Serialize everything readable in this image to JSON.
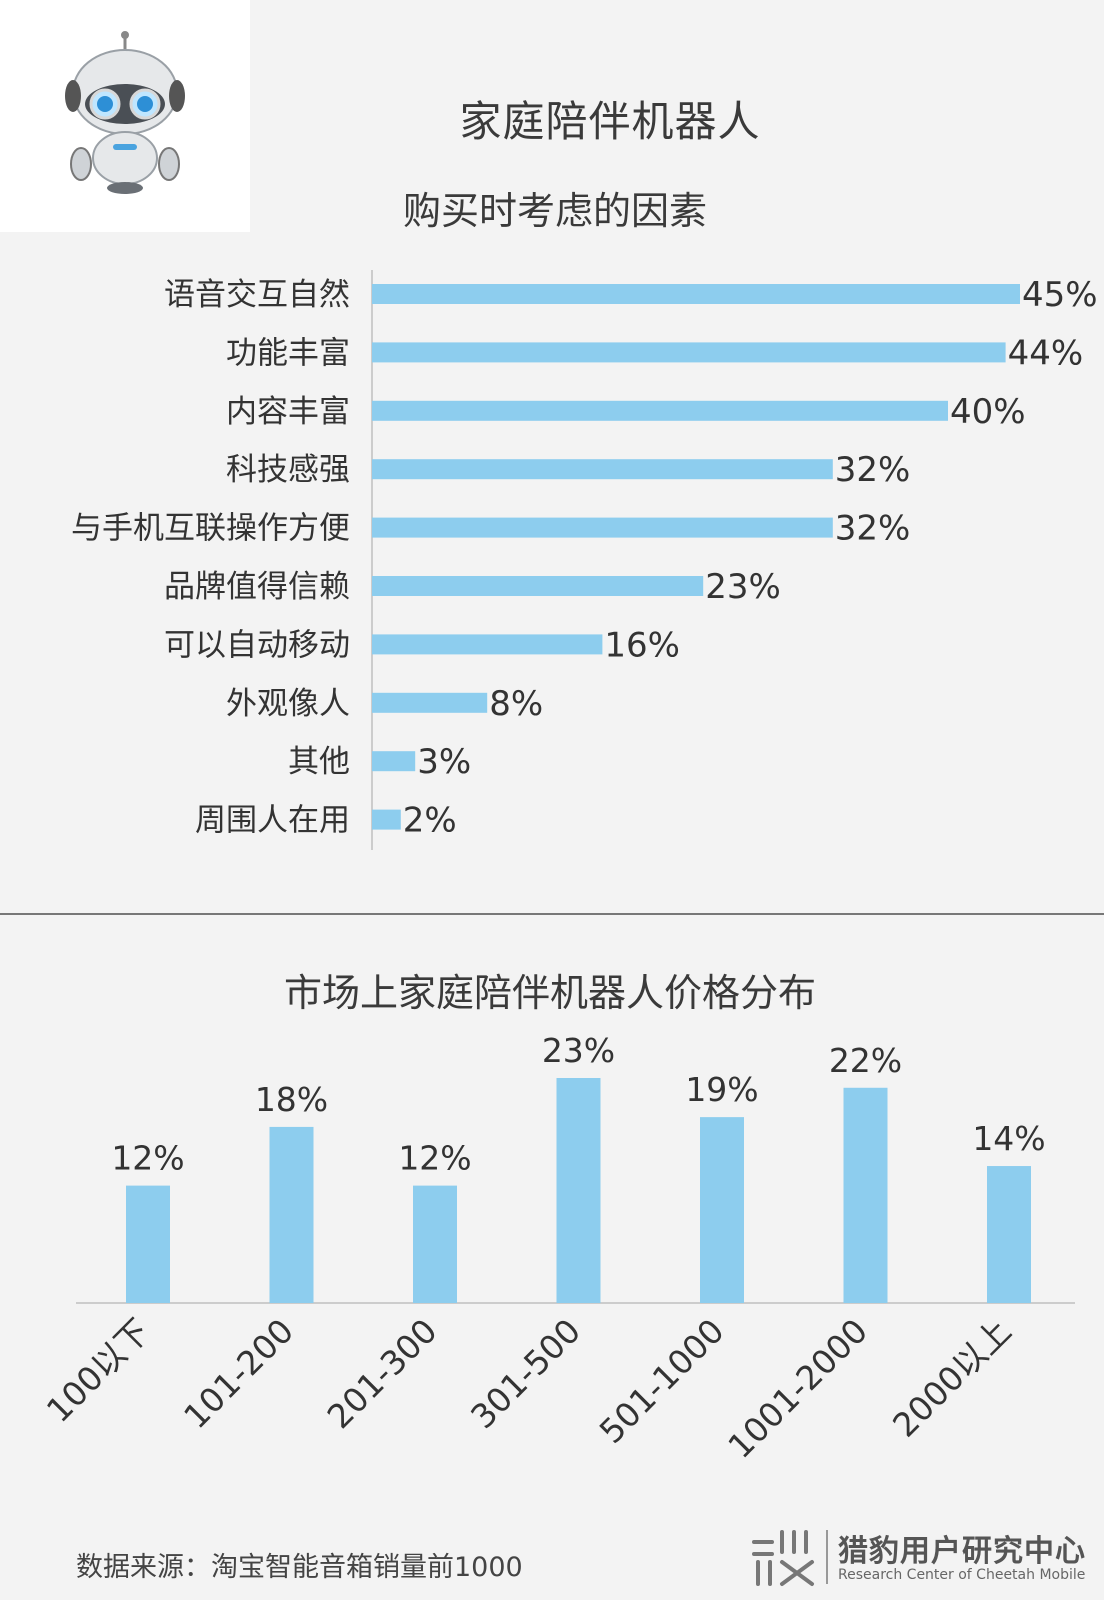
{
  "titles": {
    "main": "家庭陪伴机器人",
    "factors": "购买时考虑的因素",
    "price": "市场上家庭陪伴机器人价格分布"
  },
  "footer": {
    "source": "数据来源：淘宝智能音箱销量前1000",
    "brand_name": "猎豹用户研究中心",
    "brand_sub": "Research Center of Cheetah Mobile"
  },
  "colors": {
    "bar": "#8dcdee",
    "axis": "#cccccc",
    "text": "#333333"
  },
  "chart_data": [
    {
      "type": "bar",
      "orientation": "horizontal",
      "title": "购买时考虑的因素",
      "categories": [
        "语音交互自然",
        "功能丰富",
        "内容丰富",
        "科技感强",
        "与手机互联操作方便",
        "品牌值得信赖",
        "可以自动移动",
        "外观像人",
        "其他",
        "周围人在用"
      ],
      "values": [
        45,
        44,
        40,
        32,
        32,
        23,
        16,
        8,
        3,
        2
      ],
      "value_labels": [
        "45%",
        "44%",
        "40%",
        "32%",
        "32%",
        "23%",
        "16%",
        "8%",
        "3%",
        "2%"
      ],
      "xlim": [
        0,
        45
      ],
      "grid": false,
      "legend": "none"
    },
    {
      "type": "bar",
      "orientation": "vertical",
      "title": "市场上家庭陪伴机器人价格分布",
      "categories": [
        "100以下",
        "101-200",
        "201-300",
        "301-500",
        "501-1000",
        "1001-2000",
        "2000以上"
      ],
      "values": [
        12,
        18,
        12,
        23,
        19,
        22,
        14
      ],
      "value_labels": [
        "12%",
        "18%",
        "12%",
        "23%",
        "19%",
        "22%",
        "14%"
      ],
      "ylim": [
        0,
        23
      ],
      "grid": false,
      "legend": "none"
    }
  ]
}
